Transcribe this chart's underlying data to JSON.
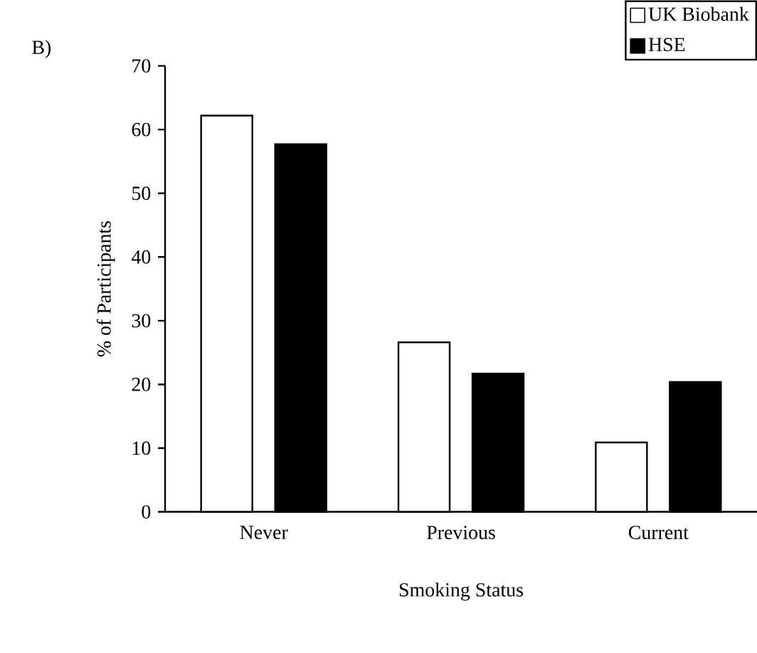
{
  "chart_data": {
    "type": "bar",
    "xlabel": "Smoking Status",
    "ylabel": "% of Participants",
    "categories": [
      "Never",
      "Previous",
      "Current"
    ],
    "series": [
      {
        "name": "UK Biobank",
        "color": "#ffffff",
        "values": [
          62.2,
          26.6,
          10.9
        ]
      },
      {
        "name": "HSE",
        "color": "#000000",
        "values": [
          57.7,
          21.7,
          20.4
        ]
      }
    ],
    "ylim": [
      0,
      70
    ],
    "yticks": [
      0,
      10,
      20,
      30,
      40,
      50,
      60,
      70
    ],
    "legend": "top right",
    "annotations": [
      "B)"
    ]
  }
}
